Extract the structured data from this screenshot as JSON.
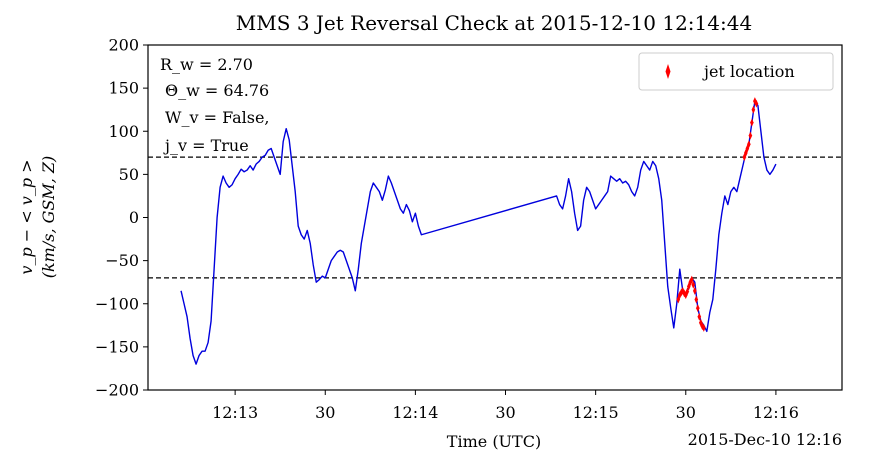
{
  "chart_data": {
    "type": "line",
    "title": "MMS 3 Jet Reversal Check at 2015-12-10 12:14:44",
    "xlabel": "Time (UTC)",
    "ylabel_line1": "v_p − < v_p >",
    "ylabel_line2": "(km/s, GSM, Z)",
    "date_offset_label": "2015-Dec-10 12:16",
    "x_unit": "seconds after 12:12:30 UTC",
    "xlim": [
      -11,
      220
    ],
    "ylim": [
      -200,
      200
    ],
    "x_ticks": [
      {
        "value": 18,
        "label": "12:13"
      },
      {
        "value": 48,
        "label": "30"
      },
      {
        "value": 78,
        "label": "12:14"
      },
      {
        "value": 108,
        "label": "30"
      },
      {
        "value": 138,
        "label": "12:15"
      },
      {
        "value": 168,
        "label": "30"
      },
      {
        "value": 198,
        "label": "12:16"
      }
    ],
    "y_ticks": [
      -200,
      -150,
      -100,
      -50,
      0,
      50,
      100,
      150,
      200
    ],
    "thresholds": [
      70,
      -70
    ],
    "annotations": [
      "R_w = 2.70",
      "Θ_w = 64.76",
      "W_v = False,",
      "j_v = True"
    ],
    "legend": {
      "position": "top-right",
      "entries": [
        "jet location"
      ]
    },
    "series": [
      {
        "name": "",
        "color": "#0000dd",
        "points": [
          [
            0,
            -85
          ],
          [
            1,
            -100
          ],
          [
            2,
            -115
          ],
          [
            3,
            -140
          ],
          [
            4,
            -160
          ],
          [
            5,
            -170
          ],
          [
            6,
            -160
          ],
          [
            7,
            -155
          ],
          [
            8,
            -155
          ],
          [
            9,
            -145
          ],
          [
            10,
            -120
          ],
          [
            11,
            -60
          ],
          [
            12,
            0
          ],
          [
            13,
            35
          ],
          [
            14,
            48
          ],
          [
            15,
            40
          ],
          [
            16,
            35
          ],
          [
            17,
            38
          ],
          [
            18,
            45
          ],
          [
            19,
            50
          ],
          [
            20,
            56
          ],
          [
            21,
            53
          ],
          [
            22,
            55
          ],
          [
            23,
            60
          ],
          [
            24,
            55
          ],
          [
            25,
            62
          ],
          [
            26,
            65
          ],
          [
            27,
            70
          ],
          [
            28,
            72
          ],
          [
            29,
            78
          ],
          [
            30,
            80
          ],
          [
            31,
            70
          ],
          [
            32,
            60
          ],
          [
            33,
            50
          ],
          [
            34,
            88
          ],
          [
            35,
            103
          ],
          [
            36,
            90
          ],
          [
            37,
            60
          ],
          [
            38,
            30
          ],
          [
            39,
            -10
          ],
          [
            40,
            -20
          ],
          [
            41,
            -25
          ],
          [
            42,
            -15
          ],
          [
            43,
            -30
          ],
          [
            44,
            -55
          ],
          [
            45,
            -75
          ],
          [
            46,
            -72
          ],
          [
            47,
            -68
          ],
          [
            48,
            -70
          ],
          [
            49,
            -60
          ],
          [
            50,
            -50
          ],
          [
            51,
            -45
          ],
          [
            52,
            -40
          ],
          [
            53,
            -38
          ],
          [
            54,
            -40
          ],
          [
            55,
            -50
          ],
          [
            56,
            -60
          ],
          [
            57,
            -70
          ],
          [
            58,
            -85
          ],
          [
            59,
            -60
          ],
          [
            60,
            -30
          ],
          [
            61,
            -10
          ],
          [
            62,
            10
          ],
          [
            63,
            30
          ],
          [
            64,
            40
          ],
          [
            65,
            35
          ],
          [
            66,
            30
          ],
          [
            67,
            20
          ],
          [
            68,
            32
          ],
          [
            69,
            48
          ],
          [
            70,
            40
          ],
          [
            71,
            30
          ],
          [
            72,
            20
          ],
          [
            73,
            10
          ],
          [
            74,
            5
          ],
          [
            75,
            15
          ],
          [
            76,
            8
          ],
          [
            77,
            -5
          ],
          [
            78,
            5
          ],
          [
            79,
            -10
          ],
          [
            80,
            -20
          ],
          [
            125,
            25
          ],
          [
            126,
            15
          ],
          [
            127,
            10
          ],
          [
            128,
            25
          ],
          [
            129,
            45
          ],
          [
            130,
            30
          ],
          [
            131,
            5
          ],
          [
            132,
            -15
          ],
          [
            133,
            -10
          ],
          [
            134,
            20
          ],
          [
            135,
            35
          ],
          [
            136,
            30
          ],
          [
            137,
            20
          ],
          [
            138,
            10
          ],
          [
            139,
            15
          ],
          [
            140,
            20
          ],
          [
            141,
            25
          ],
          [
            142,
            30
          ],
          [
            143,
            48
          ],
          [
            144,
            45
          ],
          [
            145,
            42
          ],
          [
            146,
            45
          ],
          [
            147,
            40
          ],
          [
            148,
            42
          ],
          [
            149,
            38
          ],
          [
            150,
            30
          ],
          [
            151,
            25
          ],
          [
            152,
            35
          ],
          [
            153,
            55
          ],
          [
            154,
            65
          ],
          [
            155,
            60
          ],
          [
            156,
            55
          ],
          [
            157,
            65
          ],
          [
            158,
            60
          ],
          [
            159,
            45
          ],
          [
            160,
            20
          ],
          [
            161,
            -30
          ],
          [
            162,
            -80
          ],
          [
            163,
            -105
          ],
          [
            164,
            -128
          ],
          [
            165,
            -100
          ],
          [
            166,
            -60
          ],
          [
            167,
            -85
          ],
          [
            168,
            -90
          ],
          [
            169,
            -80
          ],
          [
            170,
            -70
          ],
          [
            171,
            -75
          ],
          [
            172,
            -105
          ],
          [
            173,
            -120
          ],
          [
            174,
            -125
          ],
          [
            175,
            -132
          ],
          [
            176,
            -110
          ],
          [
            177,
            -95
          ],
          [
            178,
            -60
          ],
          [
            179,
            -20
          ],
          [
            180,
            5
          ],
          [
            181,
            25
          ],
          [
            182,
            15
          ],
          [
            183,
            30
          ],
          [
            184,
            35
          ],
          [
            185,
            30
          ],
          [
            186,
            45
          ],
          [
            187,
            60
          ],
          [
            188,
            75
          ],
          [
            189,
            85
          ],
          [
            190,
            110
          ],
          [
            191,
            135
          ],
          [
            192,
            130
          ],
          [
            193,
            100
          ],
          [
            194,
            70
          ],
          [
            195,
            55
          ],
          [
            196,
            50
          ],
          [
            197,
            55
          ],
          [
            198,
            62
          ]
        ]
      },
      {
        "name": "jet location",
        "color": "#ff0000",
        "marker": "thin_diamond",
        "points": [
          [
            165.5,
            -95
          ],
          [
            166,
            -90
          ],
          [
            166.5,
            -87
          ],
          [
            167,
            -85
          ],
          [
            167.5,
            -88
          ],
          [
            168,
            -90
          ],
          [
            168.5,
            -86
          ],
          [
            169,
            -80
          ],
          [
            169.5,
            -75
          ],
          [
            170,
            -72
          ],
          [
            170.5,
            -78
          ],
          [
            171,
            -85
          ],
          [
            171.5,
            -95
          ],
          [
            172,
            -105
          ],
          [
            172.5,
            -115
          ],
          [
            173,
            -122
          ],
          [
            173.5,
            -126
          ],
          [
            174,
            -128
          ],
          [
            187.5,
            70
          ],
          [
            188,
            75
          ],
          [
            188.5,
            80
          ],
          [
            189,
            85
          ],
          [
            189.5,
            95
          ],
          [
            190,
            110
          ],
          [
            190.5,
            125
          ],
          [
            191,
            135
          ],
          [
            191.5,
            132
          ]
        ]
      }
    ],
    "colors": {
      "line": "#0000dd",
      "jet": "#ff0000",
      "threshold": "#000000"
    }
  }
}
